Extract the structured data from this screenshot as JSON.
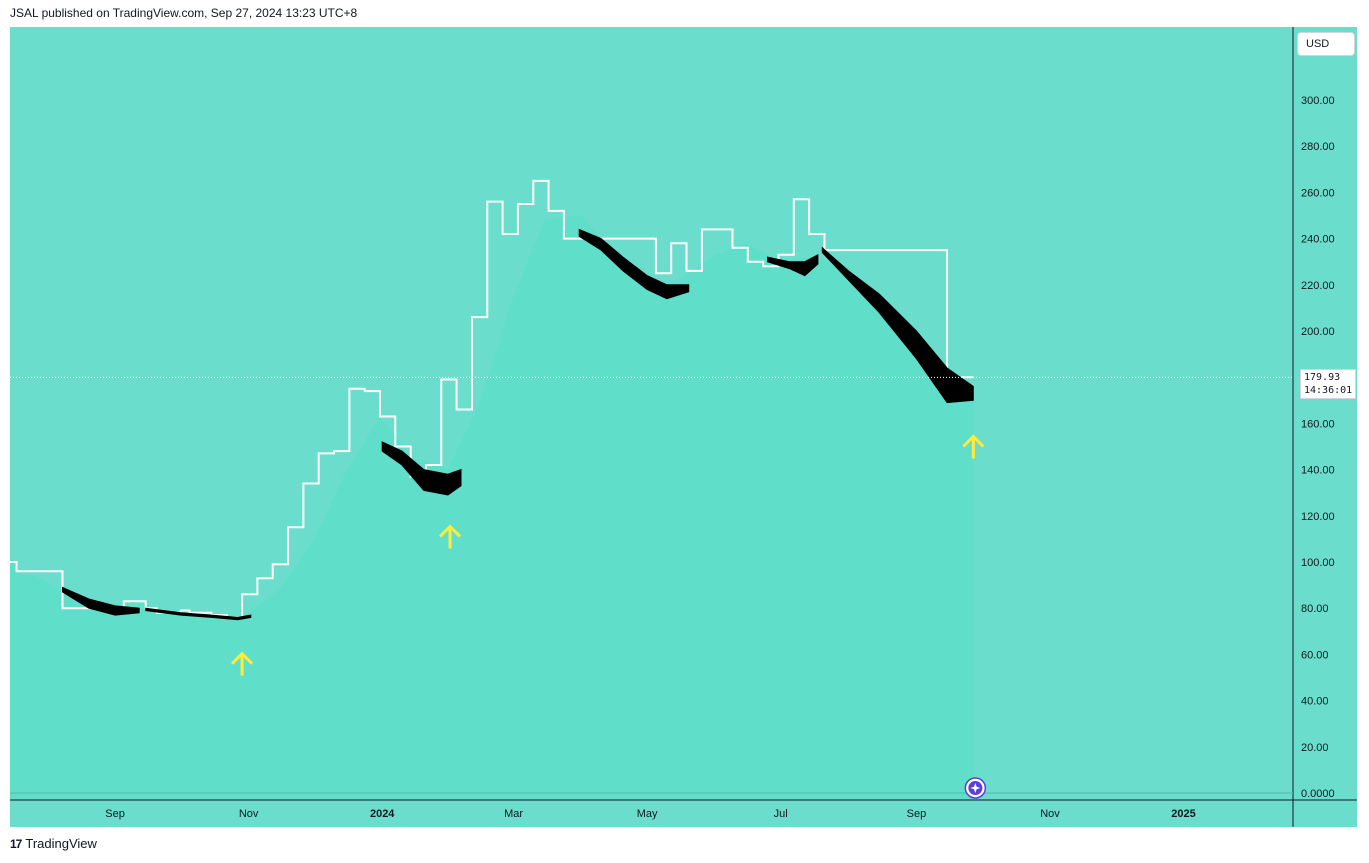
{
  "header": {
    "text": "JSAL published on TradingView.com, Sep 27, 2024 13:23 UTC+8"
  },
  "currency": "USD",
  "last_price": {
    "value": "179.93",
    "countdown": "14:36:01"
  },
  "footer": {
    "logo_icon": "tradingview-logo-icon",
    "brand": "TradingView"
  },
  "colors": {
    "background": "#6addcc",
    "area_fill": "#5fdec9",
    "step_line": "#ffffff",
    "band": "#000000",
    "arrow": "#ffeb3b",
    "axis": "#131722"
  },
  "chart_data": {
    "type": "line",
    "xlabel": "",
    "ylabel": "",
    "ylim": [
      0,
      300
    ],
    "y_ticks": [
      "0.0000",
      "20.00",
      "40.00",
      "60.00",
      "80.00",
      "100.00",
      "120.00",
      "140.00",
      "160.00",
      "180.00",
      "200.00",
      "220.00",
      "240.00",
      "260.00",
      "280.00",
      "300.00"
    ],
    "x_ticks": [
      {
        "label": "Sep",
        "date": "2023-09-01",
        "bold": false
      },
      {
        "label": "Nov",
        "date": "2023-11-01",
        "bold": false
      },
      {
        "label": "2024",
        "date": "2024-01-01",
        "bold": true
      },
      {
        "label": "Mar",
        "date": "2024-03-01",
        "bold": false
      },
      {
        "label": "May",
        "date": "2024-05-01",
        "bold": false
      },
      {
        "label": "Jul",
        "date": "2024-07-01",
        "bold": false
      },
      {
        "label": "Sep",
        "date": "2024-09-01",
        "bold": false
      },
      {
        "label": "Nov",
        "date": "2024-11-01",
        "bold": false
      },
      {
        "label": "2025",
        "date": "2025-01-01",
        "bold": true
      }
    ],
    "x_range": [
      "2023-07-15",
      "2025-02-20"
    ],
    "grid": false,
    "series": [
      {
        "kind": "step",
        "dates": [
          "2023-07-15",
          "2023-07-18",
          "2023-08-08",
          "2023-09-05",
          "2023-09-15",
          "2023-09-20",
          "2023-10-01",
          "2023-10-05",
          "2023-10-15",
          "2023-10-22",
          "2023-10-29",
          "2023-11-05",
          "2023-11-12",
          "2023-11-19",
          "2023-11-26",
          "2023-12-03",
          "2023-12-10",
          "2023-12-17",
          "2023-12-24",
          "2023-12-31",
          "2024-01-07",
          "2024-01-14",
          "2024-01-21",
          "2024-01-28",
          "2024-02-04",
          "2024-02-11",
          "2024-02-18",
          "2024-02-25",
          "2024-03-03",
          "2024-03-10",
          "2024-03-17",
          "2024-03-24",
          "2024-05-05",
          "2024-05-12",
          "2024-05-19",
          "2024-05-26",
          "2024-06-02",
          "2024-06-09",
          "2024-06-16",
          "2024-06-23",
          "2024-06-30",
          "2024-07-07",
          "2024-07-14",
          "2024-07-21",
          "2024-09-15",
          "2024-09-22",
          "2024-09-27"
        ],
        "values": [
          100,
          96,
          80,
          83,
          80,
          78,
          79,
          78,
          77,
          76,
          86,
          93,
          99,
          115,
          134,
          147,
          148,
          175,
          174,
          163,
          150,
          137,
          142,
          179,
          166,
          206,
          256,
          242,
          255,
          265,
          252,
          240,
          225,
          238,
          226,
          244,
          244,
          236,
          230,
          228,
          233,
          257,
          242,
          235,
          176,
          180,
          180
        ]
      },
      {
        "kind": "area",
        "dates": [
          "2023-07-15",
          "2023-08-01",
          "2023-08-15",
          "2023-09-01",
          "2023-09-15",
          "2023-10-01",
          "2023-10-15",
          "2023-10-29",
          "2023-11-15",
          "2023-12-01",
          "2023-12-15",
          "2023-12-31",
          "2024-01-15",
          "2024-01-31",
          "2024-02-15",
          "2024-03-01",
          "2024-03-15",
          "2024-04-01",
          "2024-04-15",
          "2024-05-01",
          "2024-05-15",
          "2024-06-01",
          "2024-06-15",
          "2024-07-01",
          "2024-07-15",
          "2024-08-01",
          "2024-08-15",
          "2024-09-01",
          "2024-09-15",
          "2024-09-27"
        ],
        "values": [
          100,
          91,
          84,
          79,
          79,
          78,
          77,
          76,
          88,
          110,
          138,
          163,
          145,
          140,
          170,
          215,
          248,
          250,
          235,
          222,
          222,
          233,
          238,
          230,
          232,
          228,
          212,
          196,
          176,
          171
        ]
      },
      {
        "kind": "band",
        "segments": [
          {
            "dates": [
              "2023-08-08",
              "2023-08-20",
              "2023-09-01",
              "2023-09-12"
            ],
            "upper": [
              89,
              84,
              81,
              80
            ],
            "lower": [
              87,
              80,
              77,
              78
            ]
          },
          {
            "dates": [
              "2023-09-15",
              "2023-10-01",
              "2023-10-15",
              "2023-10-27",
              "2023-11-02"
            ],
            "upper": [
              80,
              78,
              77,
              76,
              77
            ],
            "lower": [
              79,
              77,
              76,
              75,
              76
            ]
          },
          {
            "dates": [
              "2024-01-01",
              "2024-01-10",
              "2024-01-20",
              "2024-01-31",
              "2024-02-06"
            ],
            "upper": [
              152,
              148,
              140,
              138,
              140
            ],
            "lower": [
              148,
              142,
              131,
              129,
              133
            ]
          },
          {
            "dates": [
              "2024-03-31",
              "2024-04-10",
              "2024-04-20",
              "2024-05-01",
              "2024-05-10",
              "2024-05-20"
            ],
            "upper": [
              244,
              240,
              232,
              224,
              220,
              220
            ],
            "lower": [
              241,
              235,
              226,
              218,
              214,
              217
            ]
          },
          {
            "dates": [
              "2024-06-25",
              "2024-07-05",
              "2024-07-12",
              "2024-07-18"
            ],
            "upper": [
              232,
              230,
              230,
              233
            ],
            "lower": [
              230,
              227,
              224,
              229
            ]
          },
          {
            "dates": [
              "2024-07-20",
              "2024-08-01",
              "2024-08-15",
              "2024-09-01",
              "2024-09-15",
              "2024-09-27"
            ],
            "upper": [
              236,
              226,
              216,
              200,
              184,
              176
            ],
            "lower": [
              234,
              222,
              208,
              188,
              169,
              170
            ]
          }
        ]
      },
      {
        "kind": "markers",
        "marker": "up-arrow",
        "points": [
          {
            "date": "2023-10-29",
            "value": 56
          },
          {
            "date": "2024-02-01",
            "value": 111
          },
          {
            "date": "2024-09-27",
            "value": 150
          }
        ]
      }
    ]
  }
}
